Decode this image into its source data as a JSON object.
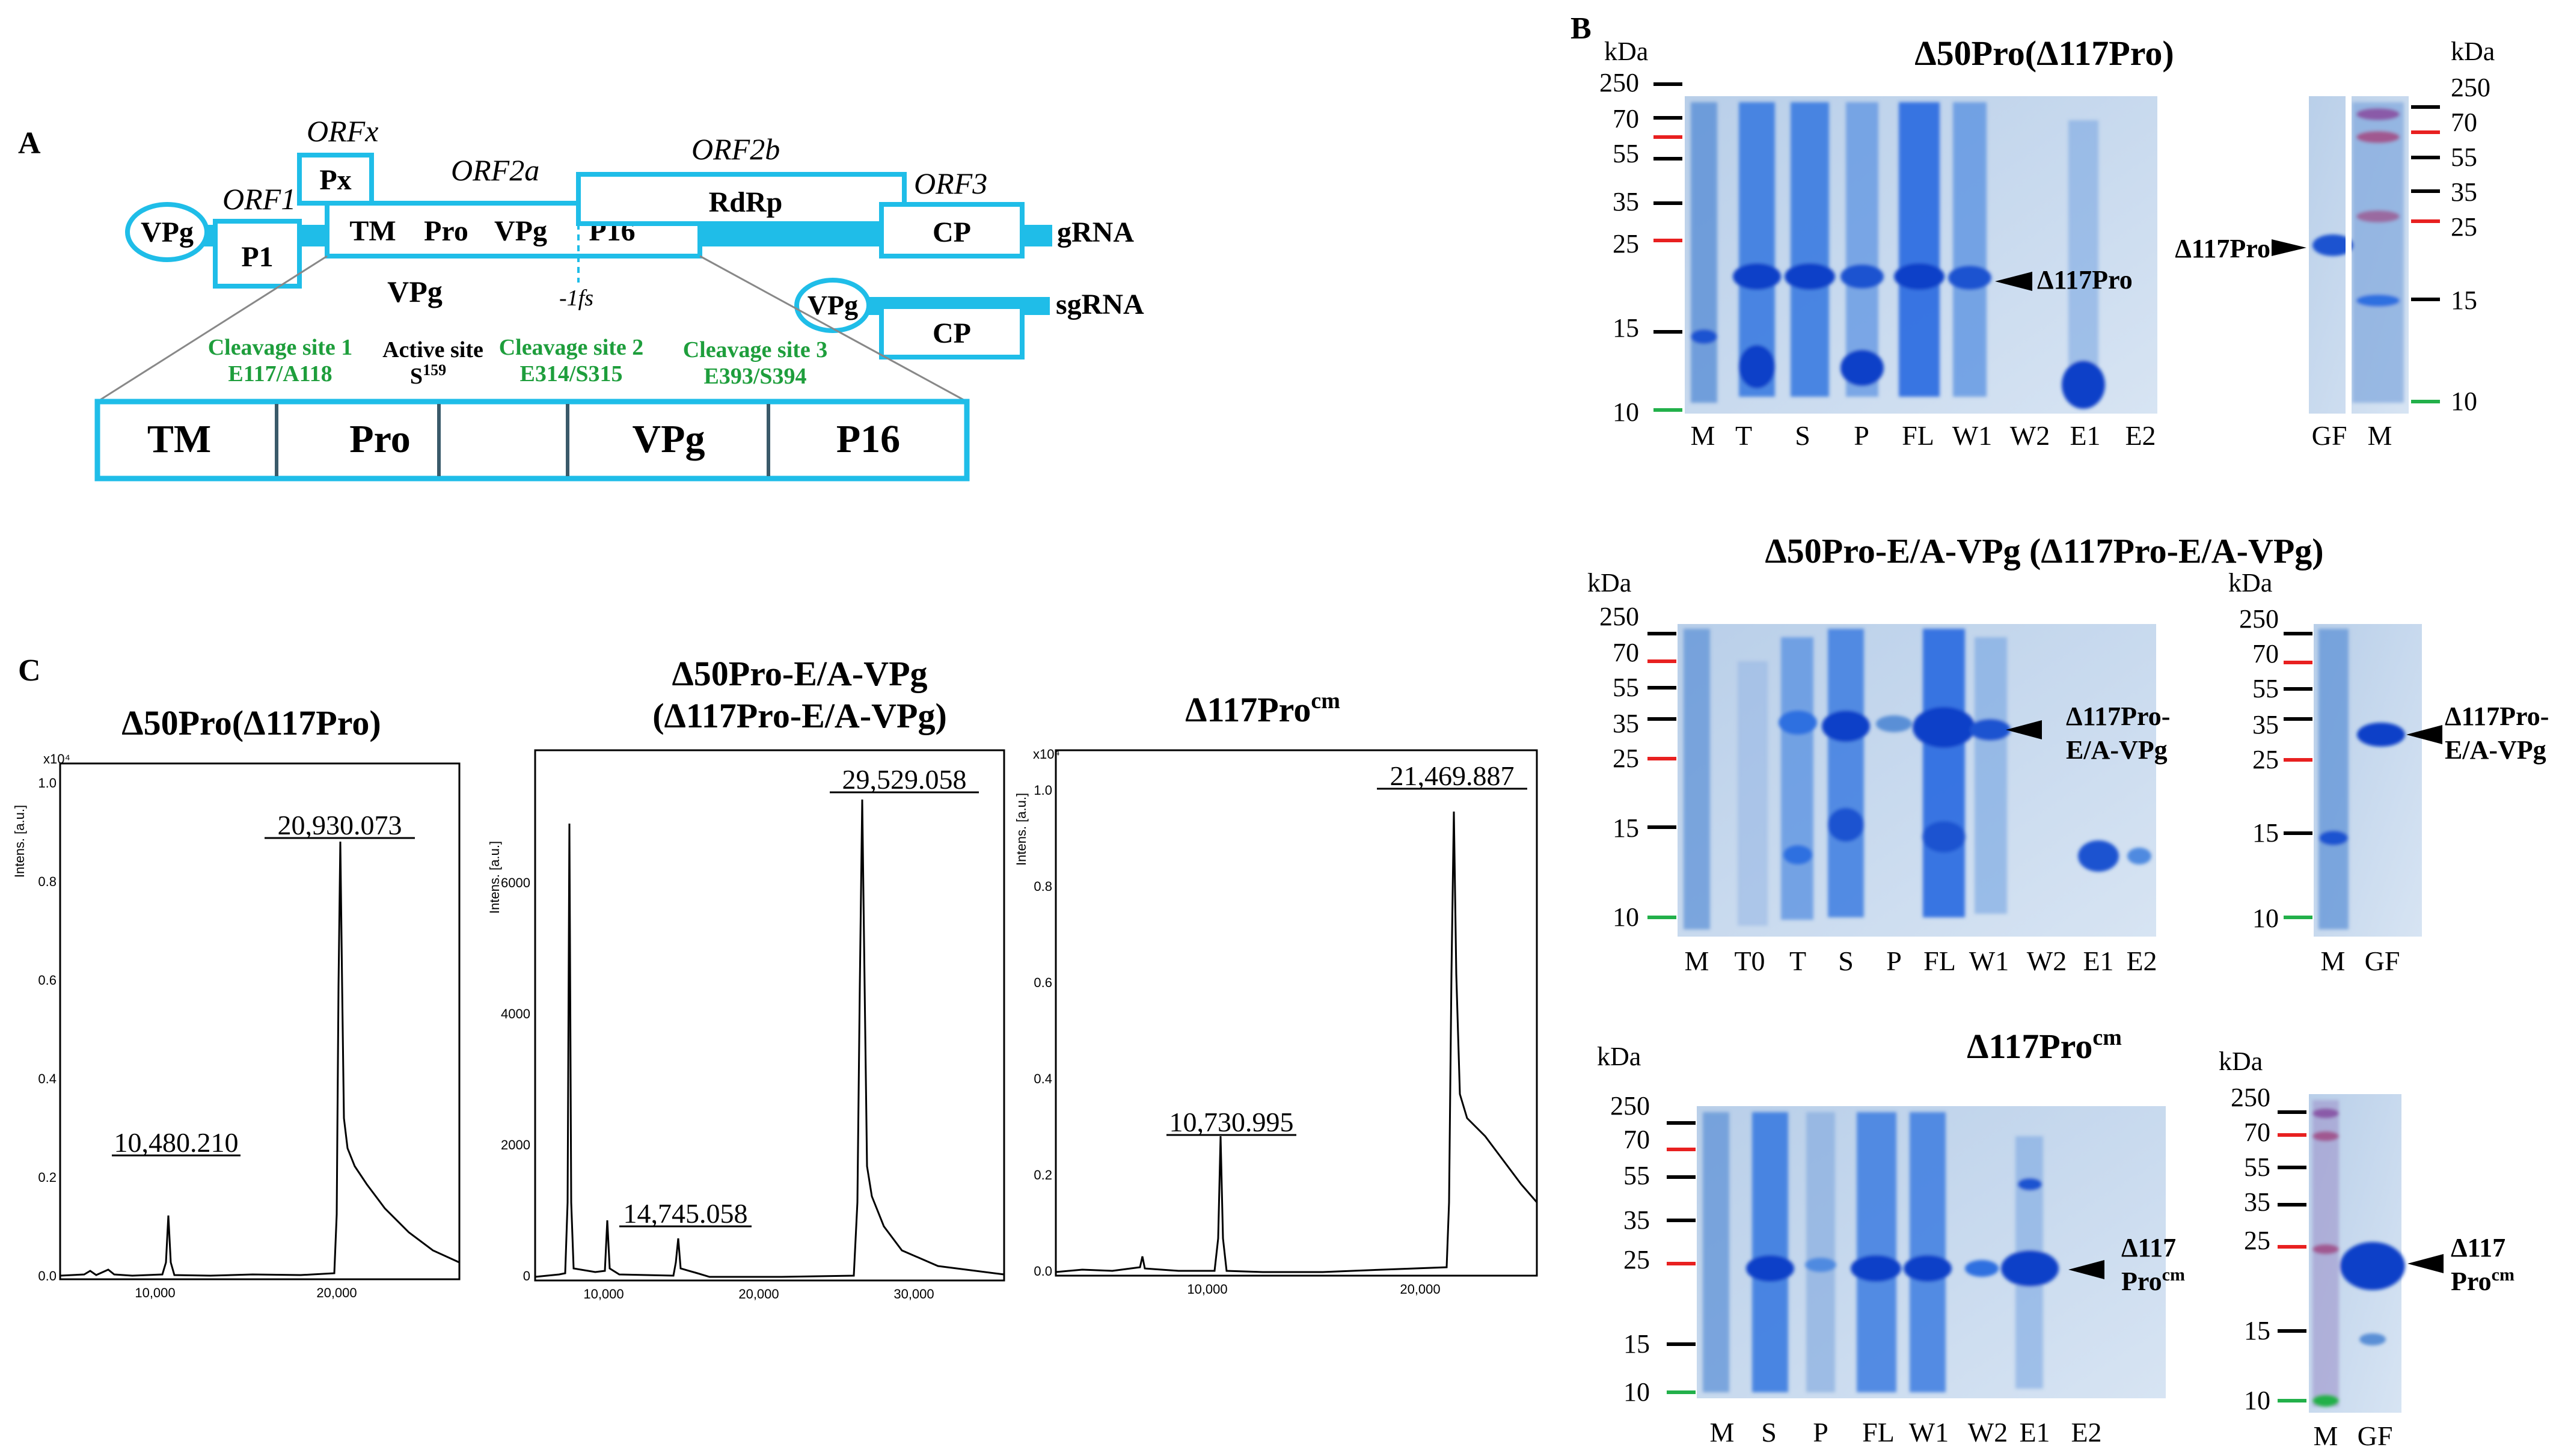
{
  "panelA": {
    "letter": "A",
    "vpg_circle": "VPg",
    "orf1": "ORF1",
    "orfx": "ORFx",
    "orf2a": "ORF2a",
    "orf2b": "ORF2b",
    "orf3": "ORF3",
    "p1": "P1",
    "px": "Px",
    "tm": "TM",
    "pro": "Pro",
    "vpg": "VPg",
    "p16": "P16",
    "rdrp": "RdRp",
    "cp": "CP",
    "grna": "gRNA",
    "vpg_below": "VPg",
    "fs": "-1fs",
    "sg_vpg": "VPg",
    "sg_cp": "CP",
    "sgrna": "sgRNA",
    "cleave1_title": "Cleavage site 1",
    "cleave1_site": "E117/A118",
    "active_title": "Active site",
    "active_site": "S",
    "active_sup": "159",
    "cleave2_title": "Cleavage site 2",
    "cleave2_site": "E314/S315",
    "cleave3_title": "Cleavage site 3",
    "cleave3_site": "E393/S394",
    "zoom_tm": "TM",
    "zoom_pro": "Pro",
    "zoom_vpg": "VPg",
    "zoom_p16": "P16",
    "colors": {
      "outline": "#1fbde8",
      "green": "#1e9e3c"
    }
  },
  "panelB": {
    "letter": "B",
    "kda": "kDa",
    "gel1": {
      "title": "Δ50Pro(Δ117Pro)",
      "ladder": [
        "250",
        "70",
        "55",
        "35",
        "25",
        "15",
        "10"
      ],
      "lanes": [
        "M",
        "T",
        "S",
        "P",
        "FL",
        "W1",
        "W2",
        "E1",
        "E2"
      ],
      "band_label": "Δ117Pro",
      "side_lanes": [
        "GF",
        "M"
      ],
      "side_ladder": [
        "250",
        "70",
        "55",
        "35",
        "25",
        "15",
        "10"
      ],
      "side_label": "Δ117Pro"
    },
    "gel2": {
      "title": "Δ50Pro-E/A-VPg (Δ117Pro-E/A-VPg)",
      "ladder": [
        "250",
        "70",
        "55",
        "35",
        "25",
        "15",
        "10"
      ],
      "lanes": [
        "M",
        "T0",
        "T",
        "S",
        "P",
        "FL",
        "W1",
        "W2",
        "E1",
        "E2"
      ],
      "band_label_1": "Δ117Pro-",
      "band_label_2": "E/A-VPg",
      "side_lanes": [
        "M",
        "GF"
      ],
      "side_ladder": [
        "250",
        "70",
        "55",
        "35",
        "25",
        "15",
        "10"
      ],
      "side_label_1": "Δ117Pro-",
      "side_label_2": "E/A-VPg"
    },
    "gel3": {
      "title": "Δ117Pro",
      "title_sup": "cm",
      "ladder": [
        "250",
        "70",
        "55",
        "35",
        "25",
        "15",
        "10"
      ],
      "lanes": [
        "M",
        "S",
        "P",
        "FL",
        "W1",
        "W2",
        "E1",
        "E2"
      ],
      "band_label_1": "Δ117",
      "band_label_2": "Pro",
      "band_sup": "cm",
      "side_lanes": [
        "M",
        "GF"
      ],
      "side_ladder": [
        "250",
        "70",
        "55",
        "35",
        "25",
        "15",
        "10"
      ],
      "side_label_1": "Δ117",
      "side_label_2": "Pro",
      "side_sup": "cm"
    }
  },
  "panelC": {
    "letter": "C",
    "ylabel": "Intens. [a.u.]",
    "spec1": {
      "title": "Δ50Pro(Δ117Pro)",
      "scale": "x10⁴",
      "yticks": [
        "0.0",
        "0.2",
        "0.4",
        "0.6",
        "0.8",
        "1.0"
      ],
      "xticks": [
        "10,000",
        "20,000"
      ],
      "peak_main": "20,930.073",
      "peak_minor": "10,480.210"
    },
    "spec2": {
      "title_1": "Δ50Pro-E/A-VPg",
      "title_2": "(Δ117Pro-E/A-VPg)",
      "yticks": [
        "0",
        "2000",
        "4000",
        "6000"
      ],
      "xticks": [
        "10,000",
        "20,000",
        "30,000"
      ],
      "peak_main": "29,529.058",
      "peak_minor": "14,745.058"
    },
    "spec3": {
      "title": "Δ117Pro",
      "title_sup": "cm",
      "scale": "x10⁴",
      "yticks": [
        "0.0",
        "0.2",
        "0.4",
        "0.6",
        "0.8",
        "1.0"
      ],
      "xticks": [
        "10,000",
        "20,000"
      ],
      "peak_main": "21,469.887",
      "peak_minor": "10,730.995"
    }
  }
}
